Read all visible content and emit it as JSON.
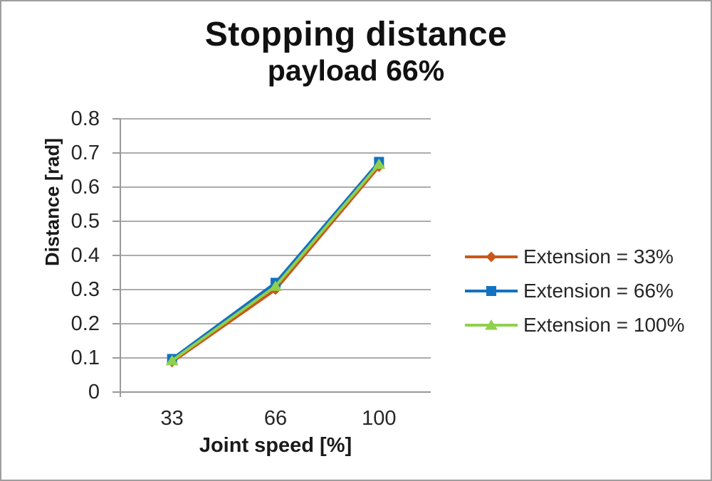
{
  "title": "Stopping distance",
  "subtitle": "payload 66%",
  "colors": {
    "background": "#FFFFFF",
    "border": "#9E9E9E",
    "grid": "#ACACAC",
    "axis": "#999999",
    "text": "#262626",
    "title_text": "#111111"
  },
  "chart_data": {
    "type": "line",
    "categories": [
      "33",
      "66",
      "100"
    ],
    "x_axis_label": "Joint speed [%]",
    "y_axis_label": "Distance [rad]",
    "ylim": [
      0,
      0.8
    ],
    "y_ticks": [
      "0.8",
      "0.7",
      "0.6",
      "0.5",
      "0.4",
      "0.3",
      "0.2",
      "0.1",
      "0"
    ],
    "grid": "horizontal",
    "legend_position": "right",
    "series": [
      {
        "name": "Extension = 33%",
        "color": "#C9571A",
        "marker": "diamond",
        "values": [
          0.088,
          0.3,
          0.66
        ]
      },
      {
        "name": "Extension = 66%",
        "color": "#1272C2",
        "marker": "square",
        "values": [
          0.097,
          0.32,
          0.674
        ]
      },
      {
        "name": "Extension = 100%",
        "color": "#8FD04C",
        "marker": "triangle",
        "values": [
          0.092,
          0.31,
          0.667
        ]
      }
    ]
  }
}
